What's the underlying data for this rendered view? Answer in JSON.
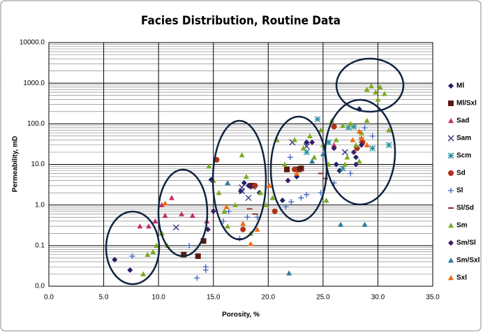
{
  "chart_data": {
    "type": "scatter",
    "title": "Facies Distribution, Routine Data",
    "x_label": "Porosity, %",
    "y_label": "Permeability, mD",
    "xlim": [
      0,
      35
    ],
    "xticks": [
      {
        "value": 0,
        "label": "0.0"
      },
      {
        "value": 5,
        "label": "5.0"
      },
      {
        "value": 10,
        "label": "10.0"
      },
      {
        "value": 15,
        "label": "15.0"
      },
      {
        "value": 20,
        "label": "20.0"
      },
      {
        "value": 25,
        "label": "25.0"
      },
      {
        "value": 30,
        "label": "30.0"
      },
      {
        "value": 35,
        "label": "35.0"
      }
    ],
    "ylim": [
      0.01,
      10000
    ],
    "log_y": true,
    "grid": true,
    "minor_grid": true,
    "yticks": [
      {
        "value": 0.01,
        "label": "0.0"
      },
      {
        "value": 0.1,
        "label": "0.1"
      },
      {
        "value": 1,
        "label": "1.0"
      },
      {
        "value": 10,
        "label": "10.0"
      },
      {
        "value": 100,
        "label": "100.0"
      },
      {
        "value": 1000,
        "label": "1000.0"
      },
      {
        "value": 10000,
        "label": "10000.0"
      }
    ],
    "legend": "right",
    "series": [
      {
        "name": "Ml",
        "color": "#1f1f6b",
        "marker": "diamond",
        "x": [
          6.0,
          7.4,
          14.8,
          17.8,
          19.2,
          21.3,
          23.5,
          26.5,
          28.0,
          28.3,
          26.2,
          22.6,
          17.5
        ],
        "values": [
          0.045,
          0.025,
          4.2,
          3.5,
          2.0,
          1.3,
          35,
          7,
          15,
          230,
          10,
          5,
          2.2
        ]
      },
      {
        "name": "Ml/Sxl",
        "color": "#5a1a10",
        "marker": "square",
        "x": [
          12.3,
          13.6,
          14.1,
          21.7,
          22.8,
          23.0,
          18.5
        ],
        "values": [
          0.06,
          0.055,
          0.13,
          7.5,
          7.5,
          8,
          3.0
        ]
      },
      {
        "name": "Sad",
        "color": "#c0306a",
        "marker": "triangle",
        "x": [
          8.3,
          9.1,
          9.7,
          10.6,
          10.3,
          11.2,
          12.1,
          13.1,
          14.4,
          26.0
        ],
        "values": [
          0.3,
          0.3,
          0.4,
          0.55,
          1.0,
          1.5,
          0.6,
          0.55,
          0.4,
          30
        ]
      },
      {
        "name": "Sam",
        "color": "#2a2a80",
        "marker": "x",
        "x": [
          11.6,
          17.6,
          17.6,
          18.2,
          18.6,
          22.2,
          23.5,
          27.0
        ],
        "values": [
          0.28,
          2.2,
          2.7,
          1.5,
          2.8,
          35,
          28,
          20
        ]
      },
      {
        "name": "Scm",
        "color": "#2a8fa0",
        "marker": "asterisk",
        "x": [
          24.5,
          26.8,
          27.3,
          27.8,
          28.5,
          29.5,
          31.0,
          23.5,
          25.5
        ],
        "values": [
          130,
          8,
          80,
          85,
          40,
          25,
          30,
          20,
          35
        ]
      },
      {
        "name": "Sd",
        "color": "#b03018",
        "marker": "circle",
        "x": [
          15.3,
          17.7,
          18.8,
          20.6,
          22.4,
          26.0,
          28.1,
          28.6
        ],
        "values": [
          13,
          0.25,
          3.0,
          0.7,
          7.5,
          85,
          25,
          35
        ]
      },
      {
        "name": "Sl",
        "color": "#3a5fc0",
        "marker": "plus",
        "x": [
          7.6,
          12.8,
          13.5,
          14.3,
          14.3,
          15.9,
          16.4,
          17.4,
          18.1,
          19.0,
          21.6,
          22.1,
          23.0,
          23.5,
          24.8,
          26.0,
          27.5,
          28.8,
          29.5,
          22.0
        ],
        "values": [
          0.055,
          0.1,
          0.016,
          0.03,
          0.025,
          0.4,
          0.7,
          0.15,
          0.5,
          0.5,
          0.9,
          1.2,
          1.5,
          1.8,
          2.0,
          3.5,
          6,
          80,
          50,
          15
        ]
      },
      {
        "name": "Sl/Sd",
        "color": "#8a2a20",
        "marker": "dash",
        "x": [
          18.3,
          18.8,
          23.0,
          25.2,
          24.8
        ],
        "values": [
          0.8,
          0.6,
          7,
          4.5,
          6
        ]
      },
      {
        "name": "Sm",
        "color": "#7aaa20",
        "marker": "triangle",
        "x": [
          8.6,
          9.0,
          9.5,
          9.8,
          10.3,
          10.8,
          14.6,
          15.0,
          15.5,
          16.0,
          16.3,
          17.0,
          17.6,
          18.0,
          18.4,
          19.3,
          19.8,
          20.4,
          20.8,
          21.5,
          22.4,
          23.2,
          23.8,
          24.2,
          24.8,
          25.3,
          25.5,
          25.8,
          26.2,
          26.8,
          27.2,
          27.5,
          28.0,
          28.5,
          29.0,
          29.4,
          29.8,
          30.2,
          30.6,
          29.0,
          30.0,
          31.0,
          27.0,
          28.3,
          25.0
        ],
        "values": [
          0.02,
          0.06,
          0.07,
          0.1,
          0.2,
          0.1,
          9,
          4,
          2,
          0.7,
          0.3,
          1.0,
          17,
          5,
          0.2,
          2.0,
          1.0,
          1.5,
          40,
          10,
          40,
          25,
          50,
          15,
          70,
          1.3,
          10,
          120,
          40,
          90,
          15,
          100,
          30,
          60,
          120,
          850,
          600,
          800,
          550,
          700,
          400,
          70,
          10,
          12,
          30
        ]
      },
      {
        "name": "Sm/Sl",
        "color": "#3a1a6a",
        "marker": "diamond",
        "x": [
          14.5,
          15.0,
          18.2,
          21.8,
          24.0,
          26.0,
          27.8,
          28.0,
          28.5
        ],
        "values": [
          0.25,
          0.7,
          3.0,
          4.0,
          35,
          25,
          20,
          10,
          30
        ]
      },
      {
        "name": "Sm/Sxl",
        "color": "#2a7aa0",
        "marker": "triangle",
        "x": [
          16.3,
          21.9,
          26.6,
          28.8,
          25.0,
          24.0
        ],
        "values": [
          3.5,
          0.021,
          0.33,
          0.33,
          18,
          12
        ]
      },
      {
        "name": "Sxl",
        "color": "#f06a10",
        "marker": "triangle",
        "x": [
          10.6,
          16.2,
          17.7,
          18.4,
          19.0,
          20.1,
          22.6,
          27.7,
          28.5,
          29.0,
          28.3
        ],
        "values": [
          1.1,
          0.9,
          0.35,
          0.11,
          0.25,
          3.0,
          6,
          40,
          45,
          30,
          65
        ]
      }
    ]
  }
}
